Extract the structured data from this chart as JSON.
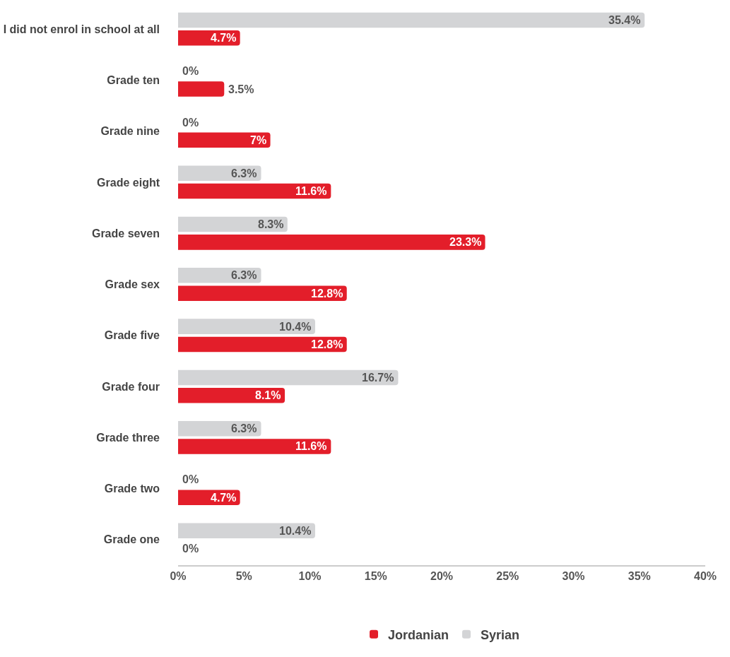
{
  "chart_data": {
    "type": "bar",
    "orientation": "horizontal",
    "categories": [
      "I did not enrol in school at all",
      "Grade ten",
      "Grade nine",
      "Grade eight",
      "Grade seven",
      "Grade sex",
      "Grade five",
      "Grade four",
      "Grade three",
      "Grade two",
      "Grade one"
    ],
    "series": [
      {
        "name": "Syrian",
        "color": "#d3d4d6",
        "values": [
          35.4,
          0,
          0,
          6.3,
          8.3,
          6.3,
          10.4,
          16.7,
          6.3,
          0,
          10.4
        ],
        "value_labels": [
          "35.4%",
          "0%",
          "0%",
          "6.3%",
          "8.3%",
          "6.3%",
          "10.4%",
          "16.7%",
          "6.3%",
          "0%",
          "10.4%"
        ]
      },
      {
        "name": "Jordanian",
        "color": "#e31e2a",
        "values": [
          4.7,
          3.5,
          7,
          11.6,
          23.3,
          12.8,
          12.8,
          8.1,
          11.6,
          4.7,
          0
        ],
        "value_labels": [
          "4.7%",
          "3.5%",
          "7%",
          "11.6%",
          "23.3%",
          "12.8%",
          "12.8%",
          "8.1%",
          "11.6%",
          "4.7%",
          "0%"
        ]
      }
    ],
    "xlim": [
      0,
      40
    ],
    "xticks": [
      {
        "value": 0,
        "label": "0%"
      },
      {
        "value": 5,
        "label": "5%"
      },
      {
        "value": 10,
        "label": "10%"
      },
      {
        "value": 15,
        "label": "15%"
      },
      {
        "value": 20,
        "label": "20%"
      },
      {
        "value": 25,
        "label": "25%"
      },
      {
        "value": 30,
        "label": "30%"
      },
      {
        "value": 35,
        "label": "35%"
      },
      {
        "value": 40,
        "label": "40%"
      }
    ],
    "grid": false,
    "legend": "bottom"
  }
}
